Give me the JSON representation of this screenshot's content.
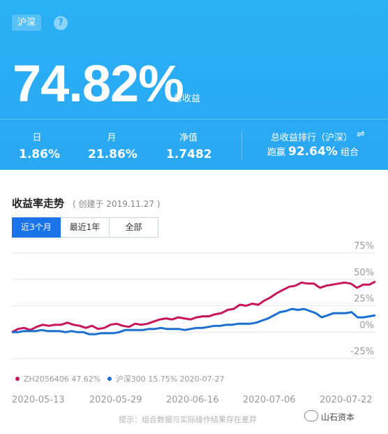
{
  "header": {
    "market_tag": "沪深",
    "help_icon": "?",
    "total_return": "74.82%",
    "total_return_label": "总收益",
    "stats": [
      {
        "label": "日",
        "value": "1.86%"
      },
      {
        "label": "月",
        "value": "21.86%"
      },
      {
        "label": "净值",
        "value": "1.7482"
      }
    ],
    "rank": {
      "title": "总收益排行（沪深）",
      "swap_icon": "⇌",
      "prefix": "跑赢",
      "value": "92.64%",
      "suffix": "组合"
    }
  },
  "trend": {
    "title": "收益率走势",
    "subtitle": "( 创建于 2019.11.27 )",
    "tabs": [
      "近3个月",
      "最近1年",
      "全部"
    ],
    "active_tab": 0,
    "footnote": "提示：组合数据与实际操作结果存在差异",
    "watermark": "山石资本"
  },
  "chart_data": {
    "type": "line",
    "ylim": [
      -25,
      75
    ],
    "yticks": [
      "75%",
      "50%",
      "25%",
      "0%",
      "-25%"
    ],
    "ytick_values": [
      75,
      50,
      25,
      0,
      -25
    ],
    "xticks": [
      "2020-05-13",
      "2020-05-29",
      "2020-06-16",
      "2020-07-06",
      "2020-07-22"
    ],
    "grid": true,
    "legend_placement": "bottom-left",
    "series": [
      {
        "name": "ZH2056406",
        "legend": "ZH2056406 47.62%",
        "color": "#c8145a",
        "values": [
          0,
          3,
          4,
          2,
          5,
          7,
          6,
          7,
          7,
          9,
          7,
          6,
          4,
          6,
          3,
          4,
          7,
          8,
          6,
          5,
          8,
          7,
          8,
          10,
          12,
          13,
          12,
          14,
          13,
          12,
          14,
          15,
          15,
          17,
          18,
          21,
          22,
          26,
          25,
          27,
          26,
          30,
          33,
          37,
          40,
          43,
          44,
          47,
          46,
          46,
          42,
          44,
          45,
          46,
          47,
          46,
          42,
          45,
          45,
          48
        ]
      },
      {
        "name": "沪深300",
        "legend": "沪深300 15.75% 2020-07-27",
        "color": "#1a6fd1",
        "values": [
          0,
          0,
          1,
          1,
          1,
          2,
          1,
          1,
          1,
          0,
          1,
          0,
          0,
          -2,
          -2,
          -1,
          -1,
          -1,
          0,
          2,
          2,
          2,
          2,
          3,
          3,
          4,
          3,
          3,
          3,
          2,
          3,
          4,
          4,
          5,
          6,
          6,
          7,
          7,
          8,
          8,
          8,
          9,
          11,
          13,
          16,
          19,
          20,
          22,
          21,
          22,
          20,
          18,
          14,
          16,
          18,
          18,
          18,
          19,
          14,
          14,
          15,
          16
        ]
      }
    ]
  }
}
